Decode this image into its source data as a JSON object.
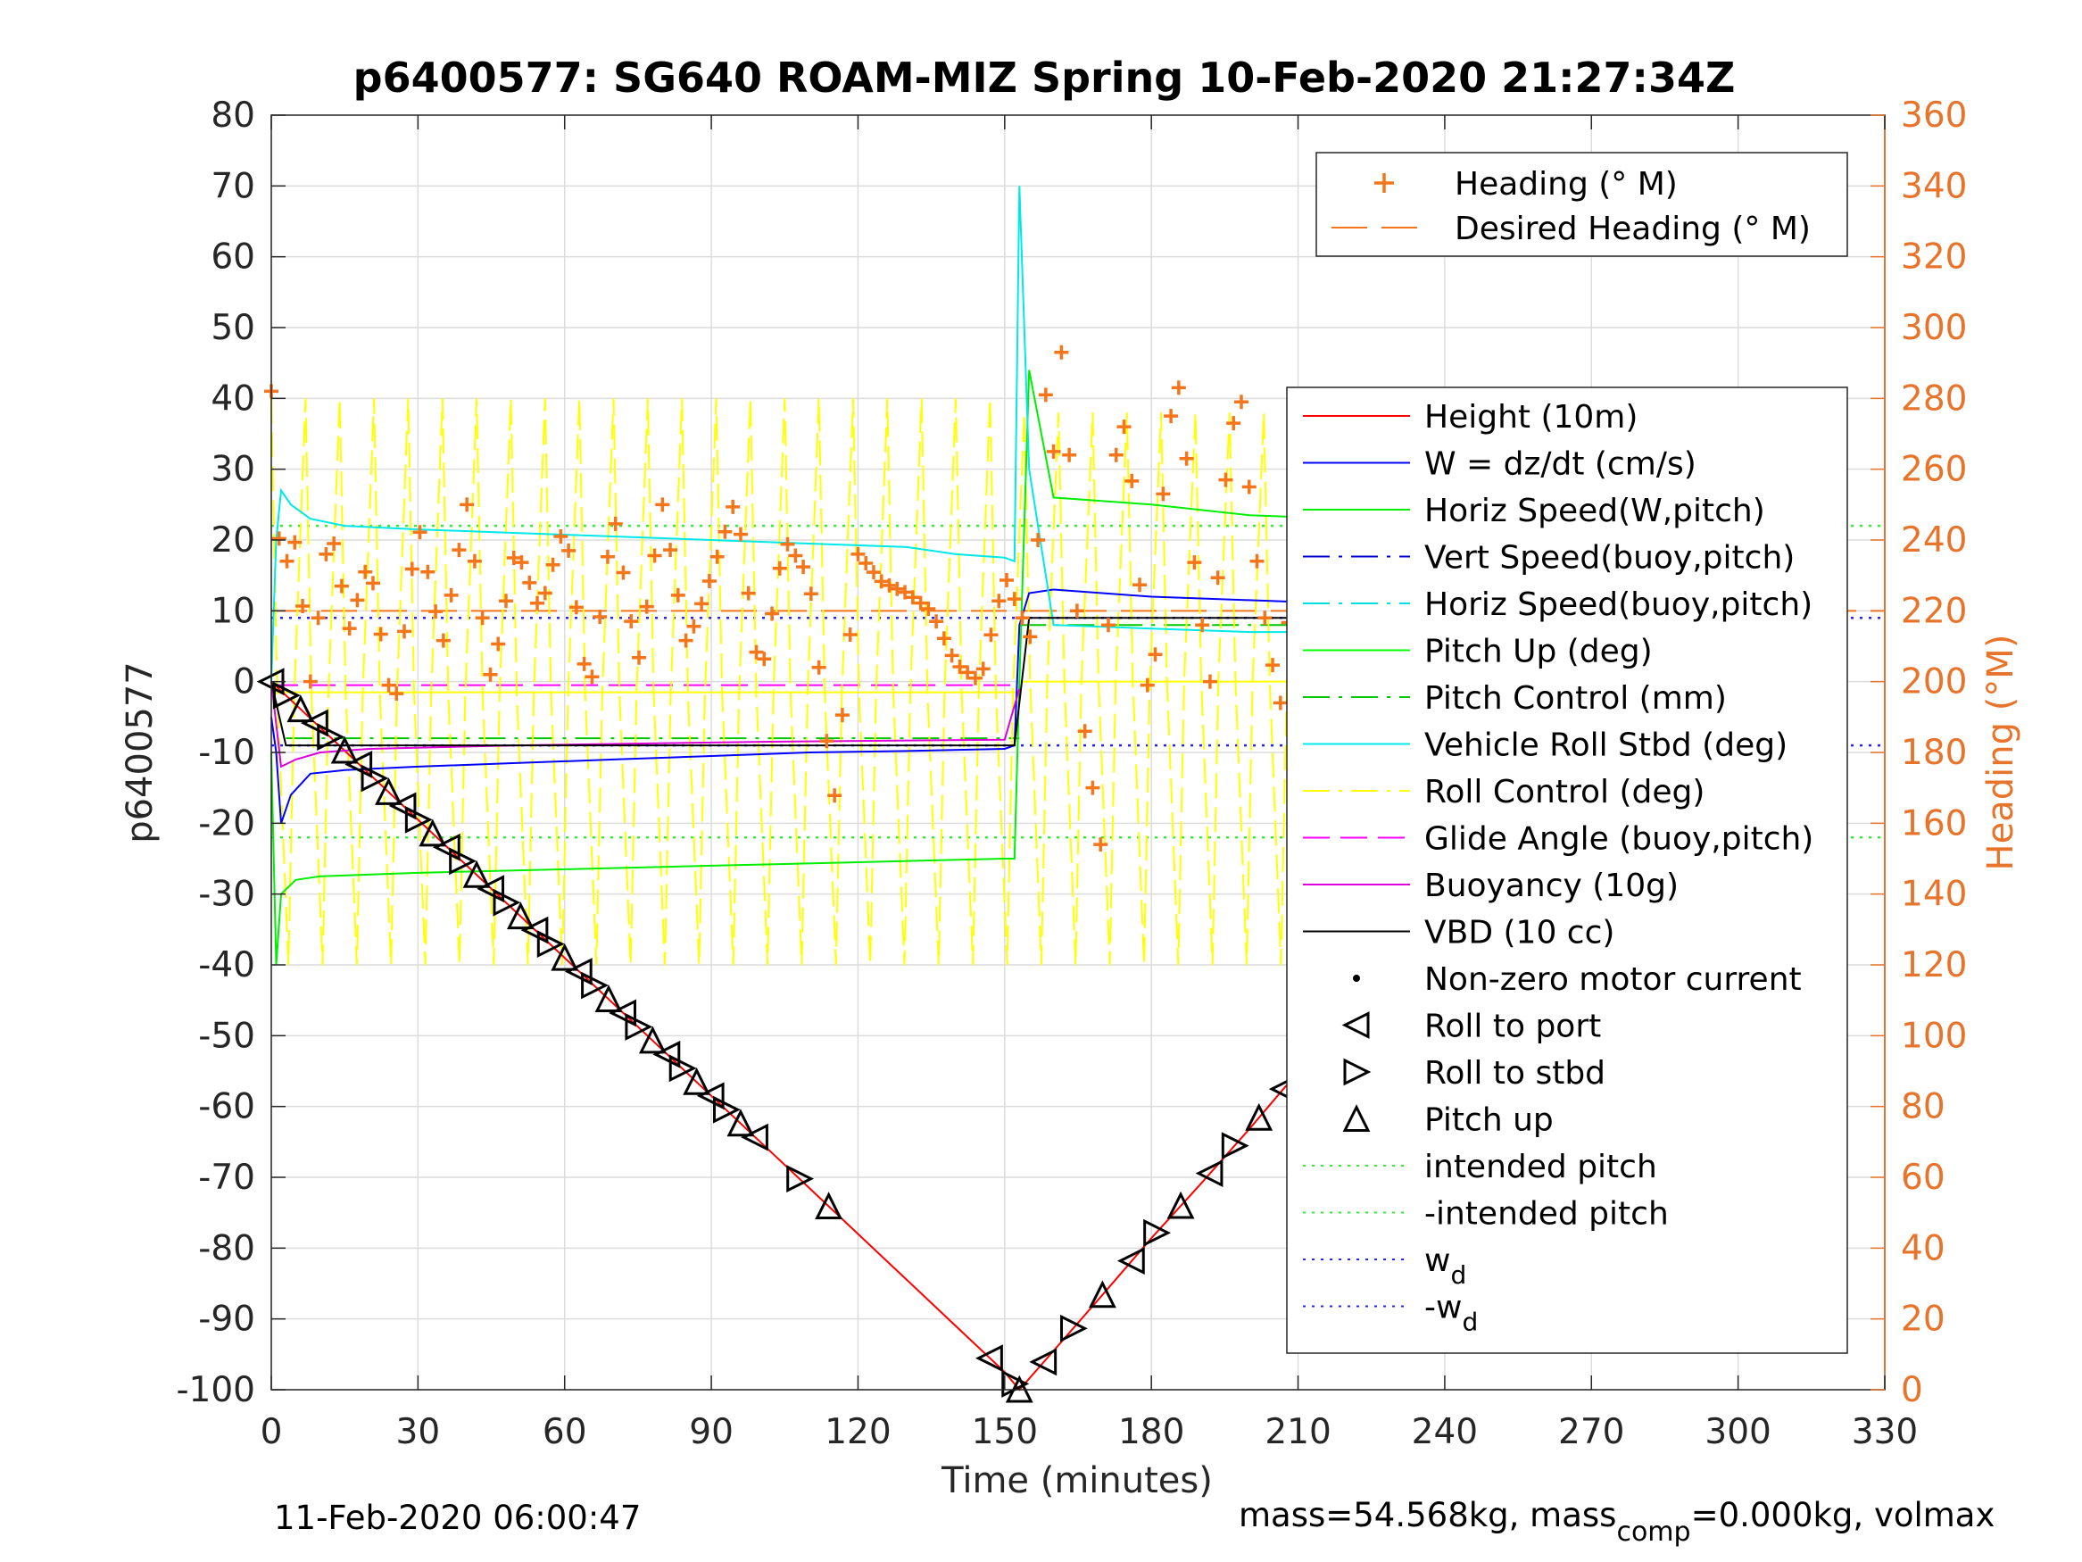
{
  "chart_data": {
    "type": "line",
    "title": "p6400577: SG640 ROAM-MIZ Spring 10-Feb-2020 21:27:34Z",
    "xlabel": "Time (minutes)",
    "ylabel_left": "p6400577",
    "ylabel_right": "Heading (°M)",
    "xlim": [
      0,
      330
    ],
    "ylim_left": [
      -100,
      80
    ],
    "ylim_right": [
      0,
      360
    ],
    "x_ticks": [
      0,
      30,
      60,
      90,
      120,
      150,
      180,
      210,
      240,
      270,
      300,
      330
    ],
    "y_ticks_left": [
      80,
      70,
      60,
      50,
      40,
      30,
      20,
      10,
      0,
      -10,
      -20,
      -30,
      -40,
      -50,
      -60,
      -70,
      -80,
      -90,
      -100
    ],
    "y_ticks_right": [
      360,
      340,
      320,
      300,
      280,
      260,
      240,
      220,
      200,
      180,
      160,
      140,
      120,
      100,
      80,
      60,
      40,
      20,
      0
    ],
    "grid": true,
    "colors": {
      "heading": "#f5761a",
      "height": "#ff0000",
      "w": "#0000ff",
      "horiz_speed": "#00ee00",
      "vert_speed_buoy": "#0000cc",
      "horiz_speed_buoy": "#00e0e0",
      "pitch_up": "#00ff00",
      "pitch_control": "#00c800",
      "vehicle_roll": "#00e8e8",
      "roll_control": "#ffff00",
      "glide_angle": "#ff00ff",
      "buoyancy": "#dd00dd",
      "vbd": "#000000",
      "intended_pitch": "#33ee33",
      "w_d": "#2222ff"
    },
    "legend_top": {
      "placement": "top-right",
      "entries": [
        {
          "label": "Heading (° M)",
          "marker": "plus",
          "color": "#f5761a"
        },
        {
          "label": "Desired Heading (° M)",
          "marker": "dashed",
          "color": "#f5761a"
        }
      ]
    },
    "legend_main": {
      "placement": "right",
      "entries": [
        {
          "label": "Height (10m)",
          "style": "solid",
          "color": "#ff0000"
        },
        {
          "label": "W = dz/dt (cm/s)",
          "style": "solid",
          "color": "#0000ff"
        },
        {
          "label": "Horiz Speed(W,pitch)",
          "style": "solid",
          "color": "#00ee00"
        },
        {
          "label": "Vert Speed(buoy,pitch)",
          "style": "dashdot",
          "color": "#0000cc"
        },
        {
          "label": "Horiz Speed(buoy,pitch)",
          "style": "dashdot",
          "color": "#00e0e0"
        },
        {
          "label": "Pitch Up (deg)",
          "style": "solid",
          "color": "#00ff00"
        },
        {
          "label": "Pitch Control (mm)",
          "style": "dashdot",
          "color": "#00c800"
        },
        {
          "label": "Vehicle Roll Stbd (deg)",
          "style": "solid",
          "color": "#00e8e8"
        },
        {
          "label": "Roll Control (deg)",
          "style": "dashdot",
          "color": "#ffff00"
        },
        {
          "label": "Glide Angle (buoy,pitch)",
          "style": "dashed",
          "color": "#ff00ff"
        },
        {
          "label": "Buoyancy (10g)",
          "style": "solid",
          "color": "#dd00dd"
        },
        {
          "label": "VBD (10 cc)",
          "style": "solid",
          "color": "#000000"
        },
        {
          "label": "Non-zero motor current",
          "style": "dot",
          "color": "#000000"
        },
        {
          "label": "Roll to port",
          "style": "tri-left",
          "color": "#000000"
        },
        {
          "label": "Roll to stbd",
          "style": "tri-right",
          "color": "#000000"
        },
        {
          "label": "Pitch up",
          "style": "tri-up",
          "color": "#000000"
        },
        {
          "label": "intended pitch",
          "style": "dotted",
          "color": "#33ee33"
        },
        {
          "label": "-intended pitch",
          "style": "dotted",
          "color": "#33ee33"
        },
        {
          "label": "w",
          "sub": "d",
          "style": "dotted",
          "color": "#2222ff"
        },
        {
          "label": "-w",
          "sub": "d",
          "style": "dotted",
          "color": "#2222ff"
        }
      ]
    },
    "reference_lines": {
      "intended_pitch": 22,
      "neg_intended_pitch": -22,
      "w_d": 9,
      "neg_w_d": -9,
      "desired_heading_deg": 220
    },
    "series": [
      {
        "name": "Height (10m)",
        "x": [
          0,
          10,
          20,
          30,
          40,
          50,
          60,
          70,
          80,
          90,
          100,
          110,
          120,
          130,
          140,
          150,
          153,
          160,
          170,
          180,
          190,
          200,
          210,
          220,
          230,
          240,
          250,
          260,
          270,
          280,
          290,
          300,
          310
        ],
        "values": [
          0,
          -6.5,
          -13,
          -19.5,
          -26,
          -32.5,
          -39,
          -45.5,
          -52,
          -58.5,
          -65,
          -71.5,
          -78,
          -84.5,
          -91,
          -97.5,
          -100,
          -94.5,
          -86.6,
          -78.6,
          -71,
          -63.2,
          -55.1,
          -47.5,
          -39.6,
          -31.7,
          -24.2,
          -16,
          -8.5,
          0.2,
          0,
          0,
          0
        ]
      },
      {
        "name": "W = dz/dt (cm/s)",
        "x": [
          0,
          1,
          2,
          4,
          8,
          15,
          30,
          50,
          70,
          90,
          110,
          130,
          150,
          152,
          153,
          155,
          160,
          180,
          200,
          220,
          240,
          260,
          280,
          300,
          308,
          310
        ],
        "values": [
          -5,
          -10,
          -20,
          -16,
          -13,
          -12.5,
          -12,
          -11.5,
          -11,
          -10.5,
          -10,
          -9.8,
          -9.5,
          -9,
          8,
          12.5,
          13,
          12,
          11.5,
          11,
          10.5,
          10,
          10,
          10,
          11,
          12
        ]
      },
      {
        "name": "Horiz Speed(W,pitch)",
        "x": [
          0,
          1,
          2,
          5,
          10,
          30,
          60,
          90,
          120,
          150,
          152,
          153,
          155,
          160,
          180,
          200,
          220,
          240,
          260,
          280,
          300,
          310
        ],
        "values": [
          -10,
          -40,
          -30,
          -28,
          -27.5,
          -27,
          -26.5,
          -26,
          -25.5,
          -25,
          -25,
          0,
          44,
          26,
          25,
          23.5,
          23,
          22.5,
          22,
          21.5,
          21.5,
          21.5
        ]
      },
      {
        "name": "Vehicle Roll Stbd (deg)",
        "x": [
          0,
          1,
          2,
          4,
          8,
          15,
          30,
          50,
          70,
          90,
          110,
          130,
          140,
          150,
          152,
          153,
          155,
          160,
          180,
          200,
          220,
          240,
          260,
          280,
          300,
          310
        ],
        "values": [
          0,
          20,
          27,
          25,
          23,
          22,
          21.5,
          21,
          20.5,
          20,
          19.5,
          19,
          18,
          17.5,
          17,
          70,
          30,
          8,
          7.5,
          7,
          7,
          7,
          7,
          7,
          7,
          7
        ]
      },
      {
        "name": "Buoyancy (10g)",
        "x": [
          0,
          2,
          5,
          10,
          20,
          50,
          100,
          150,
          153
        ],
        "values": [
          0,
          -12,
          -11,
          -10,
          -9.5,
          -9,
          -8.5,
          -8.2,
          -1
        ]
      },
      {
        "name": "VBD (10 cc)",
        "x": [
          0,
          3,
          10,
          150,
          152,
          155,
          310
        ],
        "values": [
          0,
          -9,
          -9,
          -9,
          -9,
          9,
          9
        ]
      },
      {
        "name": "Heading (° M)",
        "axis": "right",
        "x": [
          0,
          2,
          5,
          8,
          12,
          16,
          20,
          25,
          30,
          35,
          40,
          45,
          50,
          55,
          60,
          65,
          70,
          75,
          80,
          85,
          90,
          95,
          100,
          105,
          110,
          115,
          120,
          125,
          130,
          135,
          140,
          145,
          150,
          153,
          156,
          158,
          160,
          162,
          164,
          166,
          168,
          170,
          172,
          175,
          178,
          180,
          183,
          186,
          189,
          192,
          195,
          198,
          201,
          204,
          207,
          210,
          215,
          220,
          225,
          230,
          235,
          240,
          245,
          250,
          255,
          260,
          265,
          270,
          275,
          280,
          285,
          290,
          295,
          300,
          305,
          310
        ],
        "values": [
          282,
          230,
          240,
          200,
          245,
          215,
          235,
          190,
          245,
          210,
          250,
          200,
          238,
          220,
          245,
          195,
          248,
          205,
          250,
          210,
          230,
          252,
          200,
          240,
          230,
          165,
          236,
          228,
          225,
          220,
          205,
          200,
          230,
          220,
          210,
          285,
          265,
          300,
          240,
          190,
          170,
          150,
          260,
          275,
          220,
          185,
          270,
          285,
          230,
          200,
          255,
          285,
          240,
          210,
          190,
          270,
          230,
          210,
          255,
          225,
          195,
          260,
          220,
          240,
          215,
          250,
          200,
          260,
          230,
          215,
          250,
          200,
          265,
          230,
          210,
          225
        ]
      }
    ]
  },
  "footer": {
    "timestamp": "11-Feb-2020 06:00:47",
    "mass_prefix": "mass=54.568kg, mass",
    "mass_sub": "comp",
    "mass_suffix": "=0.000kg, volmax"
  }
}
